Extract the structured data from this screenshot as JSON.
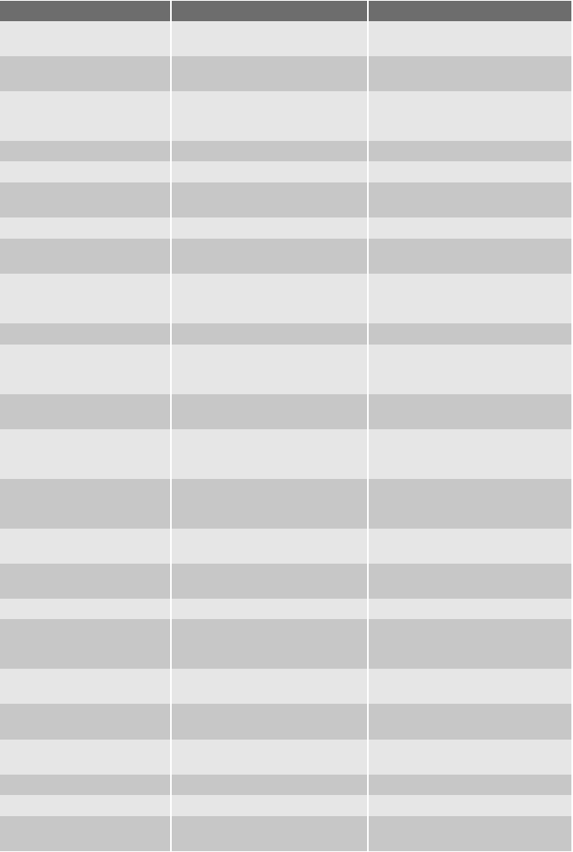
{
  "table": {
    "colors": {
      "header": "#6d6d6d",
      "row_light": "#e6e6e6",
      "row_dark": "#c7c7c7",
      "divider": "#ffffff"
    },
    "headers": [
      "",
      "",
      ""
    ],
    "rows": [
      [
        "",
        "",
        ""
      ],
      [
        "",
        "",
        ""
      ],
      [
        "",
        "",
        ""
      ],
      [
        "",
        "",
        ""
      ],
      [
        "",
        "",
        ""
      ],
      [
        "",
        "",
        ""
      ],
      [
        "",
        "",
        ""
      ],
      [
        "",
        "",
        ""
      ],
      [
        "",
        "",
        ""
      ],
      [
        "",
        "",
        ""
      ],
      [
        "",
        "",
        ""
      ],
      [
        "",
        "",
        ""
      ],
      [
        "",
        "",
        ""
      ],
      [
        "",
        "",
        ""
      ],
      [
        "",
        "",
        ""
      ],
      [
        "",
        "",
        ""
      ],
      [
        "",
        "",
        ""
      ],
      [
        "",
        "",
        ""
      ],
      [
        "",
        "",
        ""
      ],
      [
        "",
        "",
        ""
      ],
      [
        "",
        "",
        ""
      ],
      [
        "",
        "",
        ""
      ],
      [
        "",
        "",
        ""
      ],
      [
        "",
        "",
        ""
      ]
    ]
  }
}
